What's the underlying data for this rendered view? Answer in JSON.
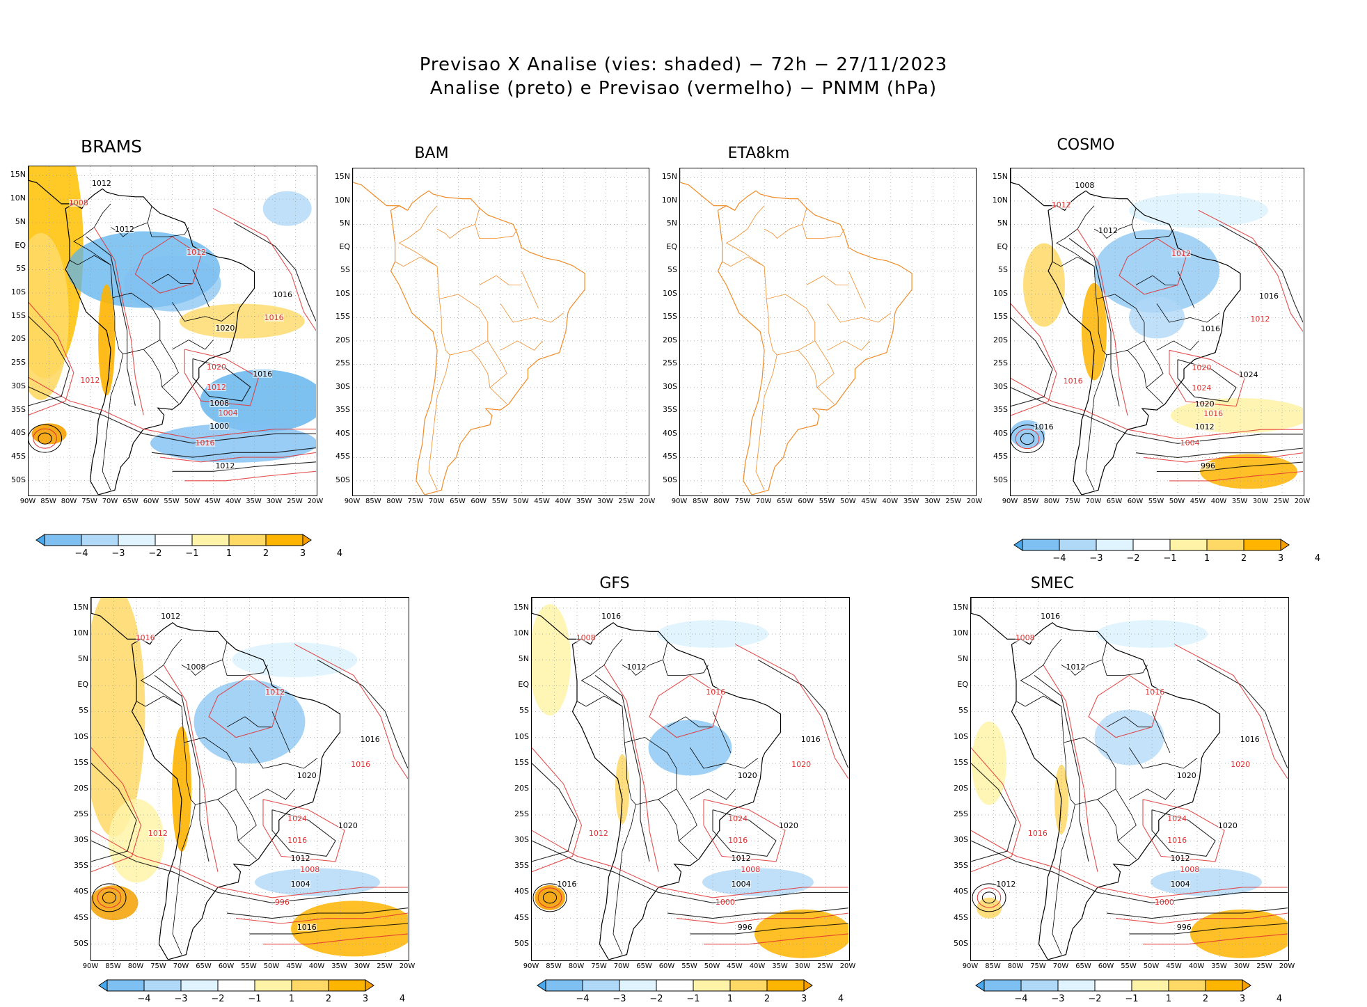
{
  "figure": {
    "title_line1": "Previsao X Analise (vies: shaded) − 72h − 27/11/2023",
    "title_line2": "Analise (preto) e Previsao (vermelho) − PNMM (hPa)"
  },
  "axes": {
    "lat_labels": [
      "15N",
      "10N",
      "5N",
      "EQ",
      "5S",
      "10S",
      "15S",
      "20S",
      "25S",
      "30S",
      "35S",
      "40S",
      "45S",
      "50S"
    ],
    "lon_labels": [
      "90W",
      "85W",
      "80W",
      "75W",
      "70W",
      "65W",
      "60W",
      "55W",
      "50W",
      "45W",
      "40W",
      "35W",
      "30W",
      "25W",
      "20W"
    ]
  },
  "colorbar": {
    "labels": [
      "−4",
      "−3",
      "−2",
      "−1",
      "1",
      "2",
      "3",
      "4"
    ],
    "colors": [
      "#4aa8ec",
      "#7fc0f2",
      "#b0d8f7",
      "#dff4ff",
      "#ffffff",
      "#fff3a8",
      "#ffd966",
      "#ffb400",
      "#f5a000"
    ]
  },
  "colors": {
    "analysis_contour": "#000000",
    "forecast_contour": "#e03030",
    "coastline_blank": "#f08c28",
    "grid": "#999999"
  },
  "panels": [
    {
      "id": "brams",
      "title": "BRAMS",
      "has_data": true
    },
    {
      "id": "bam",
      "title": "BAM",
      "has_data": false
    },
    {
      "id": "eta8km",
      "title": "ETA8km",
      "has_data": false
    },
    {
      "id": "cosmo",
      "title": "COSMO",
      "has_data": true
    },
    {
      "id": "ensemble",
      "title": "",
      "has_data": true
    },
    {
      "id": "gfs",
      "title": "GFS",
      "has_data": true
    },
    {
      "id": "smec",
      "title": "SMEC",
      "has_data": true
    }
  ],
  "contour_labels": {
    "brams": [
      "1012",
      "1008",
      "1012",
      "1012",
      "1016",
      "1016",
      "1020",
      "1020",
      "1016",
      "1012",
      "1008",
      "1004",
      "1000",
      "1016",
      "1012",
      "1012"
    ],
    "cosmo": [
      "1008",
      "1012",
      "1012",
      "1012",
      "1016",
      "1012",
      "1016",
      "1020",
      "1024",
      "1024",
      "1020",
      "1016",
      "1012",
      "1004",
      "996",
      "1016",
      "1016"
    ],
    "ensemble": [
      "1012",
      "1016",
      "1008",
      "1012",
      "1016",
      "1016",
      "1020",
      "1024",
      "1020",
      "1016",
      "1012",
      "1008",
      "1004",
      "996",
      "1016",
      "1012"
    ],
    "gfs": [
      "1016",
      "1008",
      "1012",
      "1016",
      "1016",
      "1020",
      "1020",
      "1024",
      "1020",
      "1016",
      "1012",
      "1008",
      "1004",
      "1000",
      "996",
      "1012",
      "1016"
    ],
    "smec": [
      "1016",
      "1008",
      "1012",
      "1016",
      "1016",
      "1020",
      "1020",
      "1024",
      "1020",
      "1016",
      "1012",
      "1008",
      "1004",
      "1000",
      "996",
      "1016",
      "1012"
    ]
  }
}
